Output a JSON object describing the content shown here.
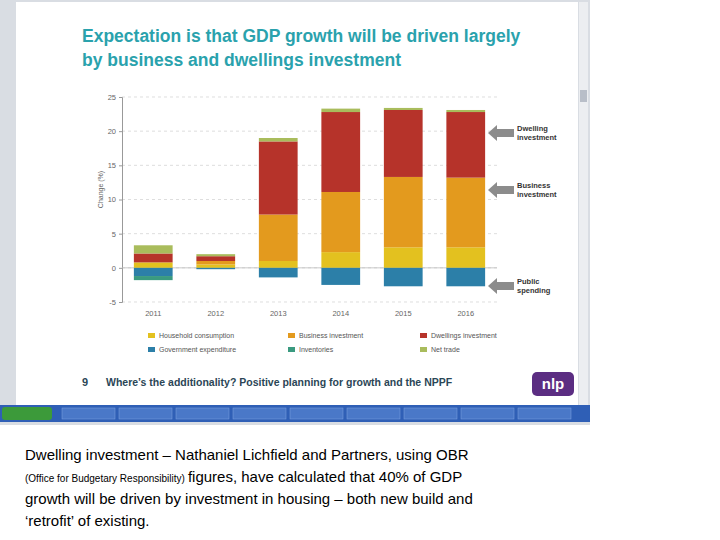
{
  "chart_data": {
    "type": "bar",
    "stacked": true,
    "grid": true,
    "title": "Expectation is that GDP growth will be driven largely by business and dwellings investment",
    "y_label": "Change (%)",
    "categories": [
      "2011",
      "2012",
      "2013",
      "2014",
      "2015",
      "2016"
    ],
    "ylim": [
      -5,
      25
    ],
    "yticks": [
      -5,
      0,
      5,
      10,
      15,
      20,
      25
    ],
    "series": [
      {
        "name": "Household consumption",
        "color": "#e3c11f",
        "values": [
          0.8,
          0.5,
          1.0,
          2.3,
          3.0,
          3.0
        ]
      },
      {
        "name": "Business investment",
        "color": "#e39a1e",
        "values": [
          0,
          0.5,
          6.8,
          8.8,
          10.3,
          10.2
        ]
      },
      {
        "name": "Dwellings investment",
        "color": "#b6332a",
        "values": [
          1.3,
          0.7,
          10.7,
          11.7,
          9.8,
          9.6
        ]
      },
      {
        "name": "Government expenditure",
        "color": "#2c7fa8",
        "values": [
          -1.2,
          -0.2,
          -1.4,
          -2.5,
          -2.7,
          -2.7
        ]
      },
      {
        "name": "Inventories",
        "color": "#3a9a80",
        "values": [
          -0.6,
          0,
          0,
          0,
          0,
          0
        ]
      },
      {
        "name": "Net trade",
        "color": "#a9bc5c",
        "values": [
          1.2,
          0.3,
          0.5,
          0.5,
          0.3,
          0.3
        ]
      }
    ],
    "annotations": [
      "Dwelling investment",
      "Business investment",
      "Public spending"
    ],
    "footer": {
      "page": "9",
      "text": "Where’s the additionality? Positive planning for growth and the NPPF",
      "logo": "nlp"
    },
    "caption": [
      "Dwelling investment – Nathaniel Lichfield and Partners, using OBR",
      "(Office for Budgetary Responsibility)",
      "figures, have calculated that 40% of GDP",
      "growth will be driven by investment in housing – both new build and",
      "‘retrofit’ of existing."
    ]
  }
}
